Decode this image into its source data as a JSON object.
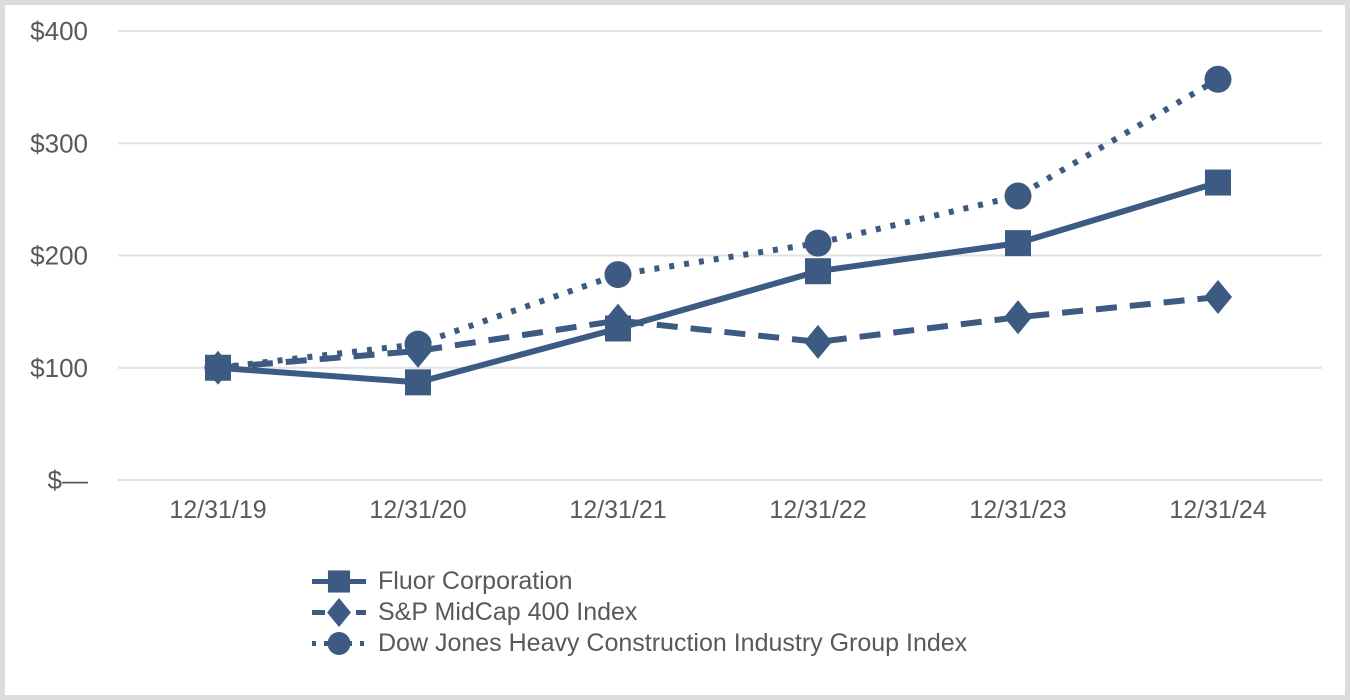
{
  "chart_data": {
    "type": "line",
    "title": "",
    "categories": [
      "12/31/19",
      "12/31/20",
      "12/31/21",
      "12/31/22",
      "12/31/23",
      "12/31/24"
    ],
    "y_axis": {
      "tick_labels": [
        "$—",
        "$100",
        "$200",
        "$300",
        "$400"
      ],
      "tick_values": [
        0,
        100,
        200,
        300,
        400
      ],
      "range": [
        0,
        400
      ]
    },
    "grid": "horizontal",
    "legend_position": "bottom-left",
    "series": [
      {
        "name": "Fluor Corporation",
        "line_style": "solid",
        "marker": "square",
        "values": [
          100,
          87,
          135,
          186,
          211,
          265
        ]
      },
      {
        "name": "S&P MidCap 400 Index",
        "line_style": "dashed",
        "marker": "diamond",
        "values": [
          100,
          115,
          142,
          123,
          145,
          163
        ]
      },
      {
        "name": "Dow Jones Heavy Construction Industry Group Index",
        "line_style": "dotted",
        "marker": "circle",
        "values": [
          100,
          121,
          183,
          211,
          253,
          357
        ]
      }
    ],
    "colors": {
      "series": "#3d5a82",
      "grid": "#e2e2e2",
      "axis_text": "#595959",
      "border": "#dcdcdc",
      "background": "#ffffff"
    }
  }
}
